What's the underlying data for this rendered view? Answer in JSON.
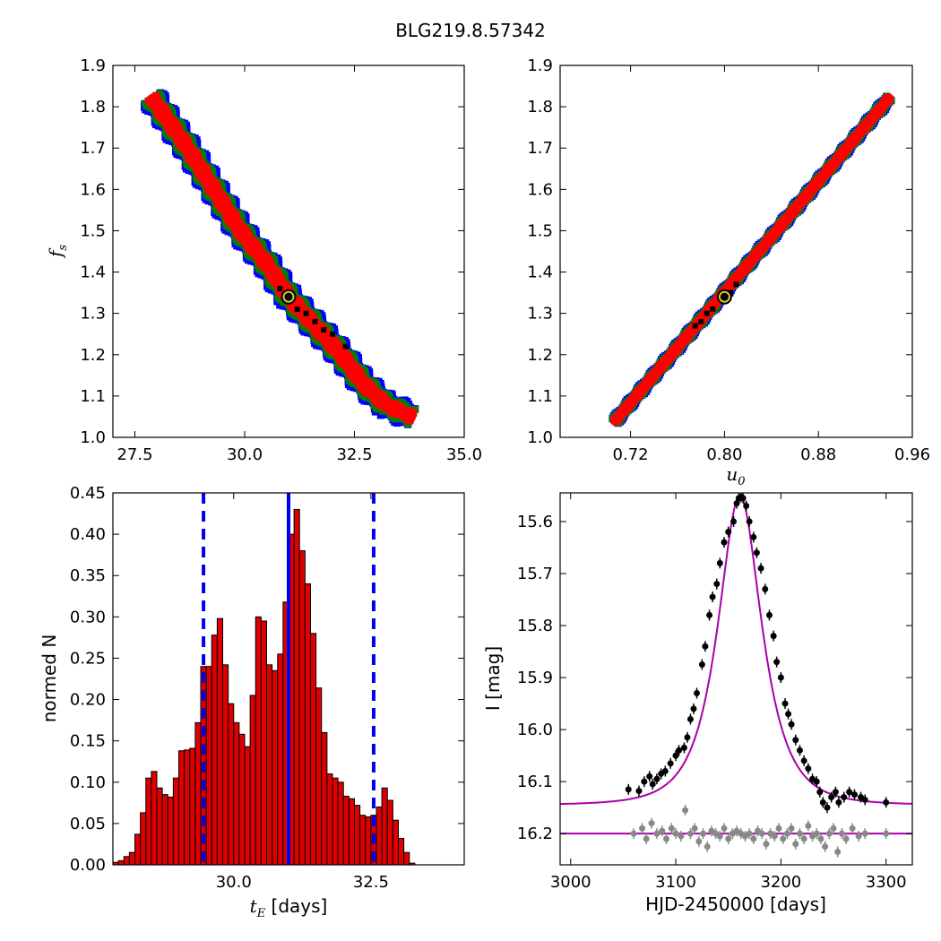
{
  "title": "BLG219.8.57342",
  "chart_data": [
    {
      "panel": "top-left",
      "type": "heatmap",
      "xlabel": "",
      "ylabel": "f_s",
      "xlim": [
        27.0,
        35.0
      ],
      "ylim": [
        1.0,
        1.9
      ],
      "xticks": [
        "27.5",
        "30.0",
        "32.5",
        "35.0"
      ],
      "yticks": [
        "1.0",
        "1.1",
        "1.2",
        "1.3",
        "1.4",
        "1.5",
        "1.6",
        "1.7",
        "1.8",
        "1.9"
      ],
      "ridge": [
        [
          27.9,
          1.82
        ],
        [
          28.7,
          1.7
        ],
        [
          29.3,
          1.6
        ],
        [
          29.9,
          1.5
        ],
        [
          30.5,
          1.42
        ],
        [
          31.0,
          1.34
        ],
        [
          31.6,
          1.27
        ],
        [
          32.2,
          1.2
        ],
        [
          32.7,
          1.13
        ],
        [
          33.2,
          1.08
        ],
        [
          33.8,
          1.05
        ]
      ],
      "levels": [
        {
          "name": "3-sigma",
          "color": "#0000ff",
          "width": 0.92
        },
        {
          "name": "2-sigma",
          "color": "#008000",
          "width": 0.66
        },
        {
          "name": "1-sigma",
          "color": "#ff0000",
          "width": 0.34
        }
      ],
      "best_fit": {
        "x": 31.0,
        "y": 1.34
      },
      "best_points": [
        [
          30.8,
          1.36
        ],
        [
          31.4,
          1.3
        ],
        [
          31.6,
          1.28
        ],
        [
          31.8,
          1.26
        ],
        [
          32.0,
          1.25
        ],
        [
          32.3,
          1.22
        ],
        [
          31.2,
          1.31
        ]
      ]
    },
    {
      "panel": "top-right",
      "type": "heatmap",
      "xlabel": "u_0",
      "ylabel": "",
      "xlim": [
        0.66,
        0.96
      ],
      "ylim": [
        1.0,
        1.9
      ],
      "xticks": [
        "0.72",
        "0.80",
        "0.88",
        "0.96"
      ],
      "yticks": [
        "1.0",
        "1.1",
        "1.2",
        "1.3",
        "1.4",
        "1.5",
        "1.6",
        "1.7",
        "1.8",
        "1.9"
      ],
      "ridge": [
        [
          0.707,
          1.04
        ],
        [
          0.94,
          1.82
        ]
      ],
      "levels": [
        {
          "name": "3-sigma",
          "color": "#0000ff",
          "width": 0.35
        },
        {
          "name": "2-sigma",
          "color": "#008000",
          "width": 0.25
        },
        {
          "name": "1-sigma",
          "color": "#ff0000",
          "width": 0.12
        }
      ],
      "best_fit": {
        "x": 0.8,
        "y": 1.34
      },
      "best_points": [
        [
          0.79,
          1.31
        ],
        [
          0.785,
          1.3
        ],
        [
          0.78,
          1.28
        ],
        [
          0.775,
          1.27
        ],
        [
          0.805,
          1.35
        ],
        [
          0.81,
          1.37
        ]
      ]
    },
    {
      "panel": "bottom-left",
      "type": "bar",
      "xlabel": "t_E [days]",
      "ylabel": "normed N",
      "xlim": [
        27.8,
        34.2
      ],
      "ylim": [
        0.0,
        0.45
      ],
      "xticks": [
        "30.0",
        "32.5"
      ],
      "yticks": [
        "0.00",
        "0.05",
        "0.10",
        "0.15",
        "0.20",
        "0.25",
        "0.30",
        "0.35",
        "0.40",
        "0.45"
      ],
      "bin_start": 27.8,
      "bin_width": 0.1,
      "values": [
        0.003,
        0.005,
        0.01,
        0.015,
        0.037,
        0.063,
        0.105,
        0.113,
        0.093,
        0.085,
        0.082,
        0.105,
        0.138,
        0.139,
        0.141,
        0.172,
        0.24,
        0.24,
        0.278,
        0.298,
        0.242,
        0.195,
        0.172,
        0.158,
        0.143,
        0.205,
        0.3,
        0.295,
        0.242,
        0.235,
        0.255,
        0.318,
        0.4,
        0.43,
        0.38,
        0.34,
        0.28,
        0.214,
        0.16,
        0.11,
        0.105,
        0.1,
        0.083,
        0.08,
        0.072,
        0.06,
        0.058,
        0.06,
        0.07,
        0.093,
        0.078,
        0.054,
        0.032,
        0.015,
        0.002
      ],
      "bar_color": "#dd0000",
      "vlines": [
        {
          "x": 29.45,
          "style": "dashed",
          "color": "#0000ee"
        },
        {
          "x": 31.0,
          "style": "solid",
          "color": "#0000ee"
        },
        {
          "x": 32.55,
          "style": "dashed",
          "color": "#0000ee"
        }
      ]
    },
    {
      "panel": "bottom-right",
      "type": "scatter",
      "xlabel": "HJD-2450000 [days]",
      "ylabel": "I [mag]",
      "xlim": [
        2990,
        3325
      ],
      "ylim": [
        16.26,
        15.545
      ],
      "xticks": [
        "3000",
        "3100",
        "3200",
        "3300"
      ],
      "yticks": [
        "15.6",
        "15.7",
        "15.8",
        "15.9",
        "16.0",
        "16.1",
        "16.2"
      ],
      "model": {
        "t0": 3161,
        "tE": 31,
        "base": 16.145,
        "peak": 15.55,
        "color": "#aa00aa"
      },
      "residual_baseline": {
        "y": 16.2,
        "color": "#aa00aa"
      },
      "data": [
        [
          3055,
          16.115
        ],
        [
          3065,
          16.118
        ],
        [
          3070,
          16.1
        ],
        [
          3075,
          16.09
        ],
        [
          3078,
          16.105
        ],
        [
          3082,
          16.095
        ],
        [
          3086,
          16.085
        ],
        [
          3090,
          16.08
        ],
        [
          3095,
          16.065
        ],
        [
          3100,
          16.05
        ],
        [
          3103,
          16.04
        ],
        [
          3108,
          16.035
        ],
        [
          3111,
          16.015
        ],
        [
          3114,
          15.98
        ],
        [
          3117,
          15.96
        ],
        [
          3120,
          15.93
        ],
        [
          3125,
          15.875
        ],
        [
          3128,
          15.84
        ],
        [
          3132,
          15.78
        ],
        [
          3135,
          15.745
        ],
        [
          3139,
          15.72
        ],
        [
          3142,
          15.68
        ],
        [
          3146,
          15.64
        ],
        [
          3150,
          15.62
        ],
        [
          3155,
          15.6
        ],
        [
          3158,
          15.565
        ],
        [
          3160,
          15.555
        ],
        [
          3162,
          15.553
        ],
        [
          3164,
          15.555
        ],
        [
          3167,
          15.57
        ],
        [
          3170,
          15.6
        ],
        [
          3174,
          15.63
        ],
        [
          3177,
          15.66
        ],
        [
          3181,
          15.69
        ],
        [
          3185,
          15.73
        ],
        [
          3189,
          15.78
        ],
        [
          3193,
          15.82
        ],
        [
          3196,
          15.87
        ],
        [
          3200,
          15.9
        ],
        [
          3204,
          15.95
        ],
        [
          3207,
          15.97
        ],
        [
          3210,
          15.99
        ],
        [
          3214,
          16.02
        ],
        [
          3218,
          16.04
        ],
        [
          3222,
          16.06
        ],
        [
          3226,
          16.075
        ],
        [
          3230,
          16.095
        ],
        [
          3234,
          16.1
        ],
        [
          3237,
          16.12
        ],
        [
          3240,
          16.14
        ],
        [
          3244,
          16.15
        ],
        [
          3248,
          16.13
        ],
        [
          3252,
          16.12
        ],
        [
          3255,
          16.14
        ],
        [
          3260,
          16.13
        ],
        [
          3265,
          16.12
        ],
        [
          3270,
          16.125
        ],
        [
          3276,
          16.13
        ],
        [
          3280,
          16.135
        ],
        [
          3300,
          16.14
        ]
      ],
      "residuals": [
        [
          3060,
          16.2
        ],
        [
          3068,
          16.19
        ],
        [
          3072,
          16.21
        ],
        [
          3077,
          16.18
        ],
        [
          3082,
          16.2
        ],
        [
          3087,
          16.195
        ],
        [
          3091,
          16.21
        ],
        [
          3096,
          16.19
        ],
        [
          3100,
          16.2
        ],
        [
          3105,
          16.205
        ],
        [
          3109,
          16.155
        ],
        [
          3114,
          16.2
        ],
        [
          3118,
          16.19
        ],
        [
          3122,
          16.215
        ],
        [
          3126,
          16.2
        ],
        [
          3130,
          16.225
        ],
        [
          3134,
          16.195
        ],
        [
          3138,
          16.2
        ],
        [
          3142,
          16.205
        ],
        [
          3146,
          16.19
        ],
        [
          3150,
          16.21
        ],
        [
          3154,
          16.2
        ],
        [
          3158,
          16.195
        ],
        [
          3162,
          16.2
        ],
        [
          3166,
          16.205
        ],
        [
          3170,
          16.2
        ],
        [
          3174,
          16.21
        ],
        [
          3178,
          16.195
        ],
        [
          3182,
          16.2
        ],
        [
          3186,
          16.22
        ],
        [
          3190,
          16.2
        ],
        [
          3194,
          16.205
        ],
        [
          3198,
          16.19
        ],
        [
          3202,
          16.21
        ],
        [
          3206,
          16.2
        ],
        [
          3210,
          16.19
        ],
        [
          3214,
          16.22
        ],
        [
          3218,
          16.2
        ],
        [
          3222,
          16.21
        ],
        [
          3226,
          16.185
        ],
        [
          3230,
          16.205
        ],
        [
          3234,
          16.2
        ],
        [
          3238,
          16.21
        ],
        [
          3242,
          16.225
        ],
        [
          3246,
          16.2
        ],
        [
          3250,
          16.19
        ],
        [
          3254,
          16.235
        ],
        [
          3258,
          16.2
        ],
        [
          3262,
          16.21
        ],
        [
          3268,
          16.19
        ],
        [
          3274,
          16.205
        ],
        [
          3280,
          16.2
        ],
        [
          3300,
          16.2
        ]
      ],
      "data_color": "#000000",
      "residual_color": "#888888"
    }
  ]
}
